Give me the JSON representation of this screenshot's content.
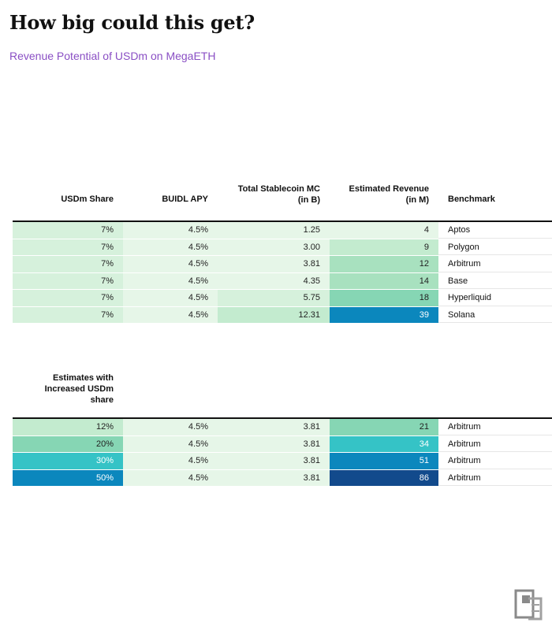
{
  "title": "How big could this get?",
  "subtitle": "Revenue Potential of USDm on MegaETH",
  "headers": {
    "share": "USDm Share",
    "apy": "BUIDL APY",
    "mc_line1": "Total Stablecoin MC",
    "mc_line2": "(in B)",
    "rev_line1": "Estimated Revenue",
    "rev_line2": "(in M)",
    "benchmark": "Benchmark",
    "increased_line1": "Estimates with",
    "increased_line2": "Increased USDm",
    "increased_line3": "share"
  },
  "colors": {
    "scale": [
      "#e6f6e8",
      "#d6f1dc",
      "#c3ebcf",
      "#a8e1bf",
      "#86d6b4",
      "#35c3c6",
      "#1aa8c9",
      "#0b87bd",
      "#124a8c"
    ]
  },
  "chart_data": [
    {
      "type": "table",
      "columns": [
        "USDm Share",
        "BUIDL APY",
        "Total Stablecoin MC (in B)",
        "Estimated Revenue (in M)",
        "Benchmark"
      ],
      "rows": [
        {
          "share": "7%",
          "apy": "4.5%",
          "mc": "1.25",
          "rev": "4",
          "benchmark": "Aptos",
          "shade": {
            "share": 1,
            "apy": 0,
            "mc": 0,
            "rev": 0
          }
        },
        {
          "share": "7%",
          "apy": "4.5%",
          "mc": "3.00",
          "rev": "9",
          "benchmark": "Polygon",
          "shade": {
            "share": 1,
            "apy": 0,
            "mc": 0,
            "rev": 2
          }
        },
        {
          "share": "7%",
          "apy": "4.5%",
          "mc": "3.81",
          "rev": "12",
          "benchmark": "Arbitrum",
          "shade": {
            "share": 1,
            "apy": 0,
            "mc": 0,
            "rev": 3
          }
        },
        {
          "share": "7%",
          "apy": "4.5%",
          "mc": "4.35",
          "rev": "14",
          "benchmark": "Base",
          "shade": {
            "share": 1,
            "apy": 0,
            "mc": 0,
            "rev": 3
          }
        },
        {
          "share": "7%",
          "apy": "4.5%",
          "mc": "5.75",
          "rev": "18",
          "benchmark": "Hyperliquid",
          "shade": {
            "share": 1,
            "apy": 0,
            "mc": 1,
            "rev": 4
          }
        },
        {
          "share": "7%",
          "apy": "4.5%",
          "mc": "12.31",
          "rev": "39",
          "benchmark": "Solana",
          "shade": {
            "share": 1,
            "apy": 0,
            "mc": 2,
            "rev": 7
          }
        }
      ]
    },
    {
      "type": "table",
      "title": "Estimates with Increased USDm share",
      "columns": [
        "USDm Share",
        "BUIDL APY",
        "Total Stablecoin MC (in B)",
        "Estimated Revenue (in M)",
        "Benchmark"
      ],
      "rows": [
        {
          "share": "12%",
          "apy": "4.5%",
          "mc": "3.81",
          "rev": "21",
          "benchmark": "Arbitrum",
          "shade": {
            "share": 2,
            "apy": 0,
            "mc": 0,
            "rev": 4
          }
        },
        {
          "share": "20%",
          "apy": "4.5%",
          "mc": "3.81",
          "rev": "34",
          "benchmark": "Arbitrum",
          "shade": {
            "share": 4,
            "apy": 0,
            "mc": 0,
            "rev": 5
          }
        },
        {
          "share": "30%",
          "apy": "4.5%",
          "mc": "3.81",
          "rev": "51",
          "benchmark": "Arbitrum",
          "shade": {
            "share": 5,
            "apy": 0,
            "mc": 0,
            "rev": 7
          }
        },
        {
          "share": "50%",
          "apy": "4.5%",
          "mc": "3.81",
          "rev": "86",
          "benchmark": "Arbitrum",
          "shade": {
            "share": 7,
            "apy": 0,
            "mc": 0,
            "rev": 8
          }
        }
      ]
    }
  ]
}
